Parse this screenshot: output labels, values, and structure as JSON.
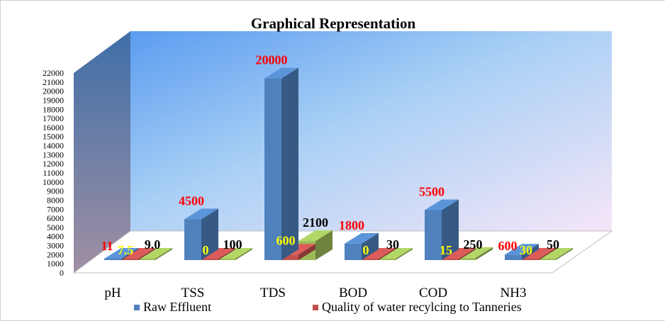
{
  "chart_data": {
    "type": "bar",
    "title": "Graphical Representation",
    "xlabel": "",
    "ylabel": "",
    "categories": [
      "pH",
      "TSS",
      "TDS",
      "BOD",
      "COD",
      "NH3"
    ],
    "series": [
      {
        "name": "Raw Effluent",
        "values": [
          11,
          4500,
          20000,
          1800,
          5500,
          600
        ],
        "color": "#4f81bd",
        "label_color": "#ff0000"
      },
      {
        "name": "Quality of water recylcing to Tanneries",
        "values": [
          7.5,
          0,
          600,
          0,
          15,
          30
        ],
        "color": "#c0504d",
        "label_color": "#ffff00"
      },
      {
        "name": "",
        "values": [
          9.0,
          100,
          2100,
          30,
          250,
          50
        ],
        "color": "#9bbb59",
        "label_color": "#000000"
      }
    ],
    "data_labels": [
      [
        "11",
        "4500",
        "20000",
        "1800",
        "5500",
        "600"
      ],
      [
        "7.5",
        "0",
        "600",
        "0",
        "15",
        "30"
      ],
      [
        "9.0",
        "100",
        "2100",
        "30",
        "250",
        "50"
      ]
    ],
    "ylim": [
      0,
      22000
    ],
    "yticks": [
      "0",
      "1000",
      "2000",
      "3000",
      "4000",
      "5000",
      "6000",
      "7000",
      "8000",
      "9000",
      "10000",
      "11000",
      "12000",
      "13000",
      "14000",
      "15000",
      "16000",
      "17000",
      "18000",
      "19000",
      "20000",
      "21000",
      "22000"
    ],
    "legend_position": "bottom",
    "legend": [
      "Raw Effluent",
      "Quality of water recylcing to Tanneries"
    ],
    "grid": false,
    "style": "3d-column"
  }
}
